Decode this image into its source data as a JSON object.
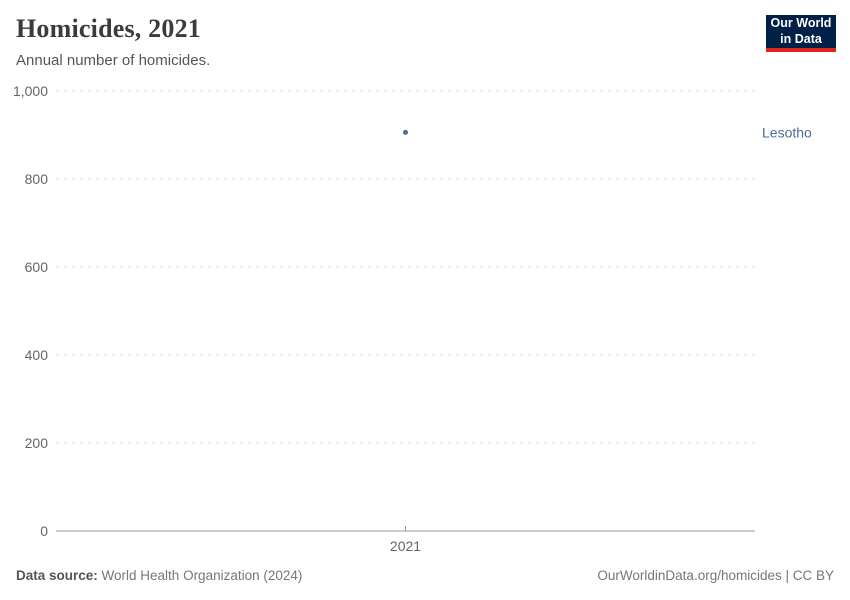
{
  "header": {
    "title": "Homicides, 2021",
    "subtitle": "Annual number of homicides."
  },
  "logo": {
    "line1": "Our World",
    "line2": "in Data",
    "bg_color": "#002147",
    "bar_color": "#e0261c"
  },
  "chart_data": {
    "type": "scatter",
    "title": "Homicides, 2021",
    "subtitle": "Annual number of homicides.",
    "x": [
      2021
    ],
    "xtick_labels": [
      "2021"
    ],
    "series": [
      {
        "name": "Lesotho",
        "values": [
          906
        ],
        "color": "#4c6a9c"
      }
    ],
    "ylim": [
      0,
      1000
    ],
    "yticks": [
      0,
      200,
      400,
      600,
      800,
      1000
    ],
    "ytick_labels": [
      "0",
      "200",
      "400",
      "600",
      "800",
      "1,000"
    ],
    "grid": "horizontal-dashed",
    "legend_position": "right-of-point",
    "colors": {
      "gridline": "#dcdcdc",
      "axis_line": "#999999",
      "tick_label": "#666666",
      "point": "#4c6a9c",
      "entity_label": "#4c6a9c"
    }
  },
  "footer": {
    "source_label": "Data source:",
    "source_text": " World Health Organization (2024)",
    "link_text": "OurWorldinData.org/homicides | CC BY"
  }
}
